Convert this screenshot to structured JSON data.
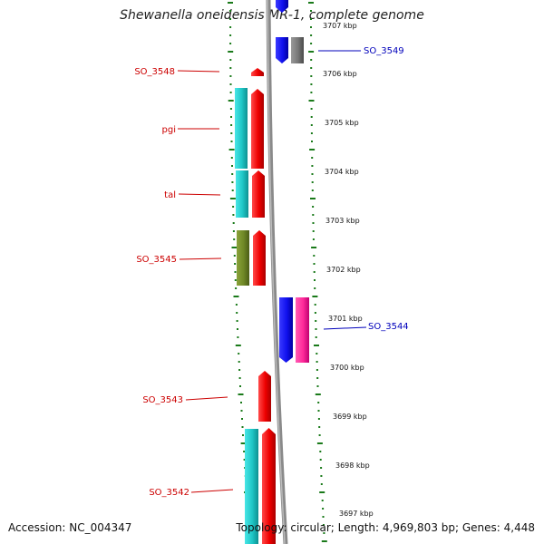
{
  "title": "Shewanella oneidensis MR-1, complete genome",
  "accession": "Accession: NC_004347",
  "topology": "Topology: circular; Length: 4,969,803 bp; Genes: 4,448",
  "colors": {
    "label_red": "#cc0000",
    "label_blue": "#0000bb",
    "tick_green": "#1a7a1a",
    "backbone": "#888888"
  },
  "kbp_ticks": [
    "3707 kbp",
    "3706 kbp",
    "3705 kbp",
    "3704 kbp",
    "3703 kbp",
    "3702 kbp",
    "3701 kbp",
    "3700 kbp",
    "3699 kbp",
    "3698 kbp",
    "3697 kbp"
  ],
  "gene_labels": [
    {
      "text": "SO_3549",
      "color": "blue"
    },
    {
      "text": "SO_3548",
      "color": "red"
    },
    {
      "text": "pgi",
      "color": "red"
    },
    {
      "text": "tal",
      "color": "red"
    },
    {
      "text": "SO_3545",
      "color": "red"
    },
    {
      "text": "SO_3544",
      "color": "blue"
    },
    {
      "text": "SO_3543",
      "color": "red"
    },
    {
      "text": "SO_3542",
      "color": "red"
    }
  ]
}
